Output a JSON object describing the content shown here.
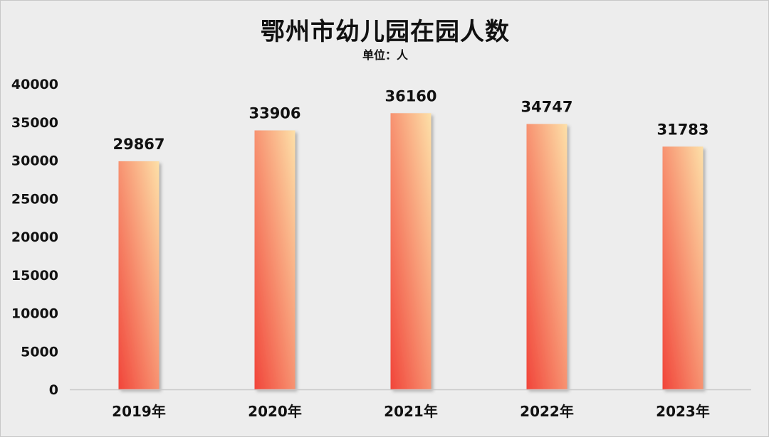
{
  "chart_data": {
    "type": "bar",
    "title": "鄂州市幼儿园在园人数",
    "subtitle": "单位：人",
    "categories": [
      "2019年",
      "2020年",
      "2021年",
      "2022年",
      "2023年"
    ],
    "values": [
      29867,
      33906,
      36160,
      34747,
      31783
    ],
    "data_labels": [
      "29867",
      "33906",
      "36160",
      "34747",
      "31783"
    ],
    "ylim": [
      0,
      40000
    ],
    "yticks": [
      0,
      5000,
      10000,
      15000,
      20000,
      25000,
      30000,
      35000,
      40000
    ],
    "grid": false,
    "legend": "none",
    "colors": {
      "bar_gradient_start": "#f1453a",
      "bar_gradient_end": "#fde0a8",
      "background": "#ededed"
    }
  }
}
